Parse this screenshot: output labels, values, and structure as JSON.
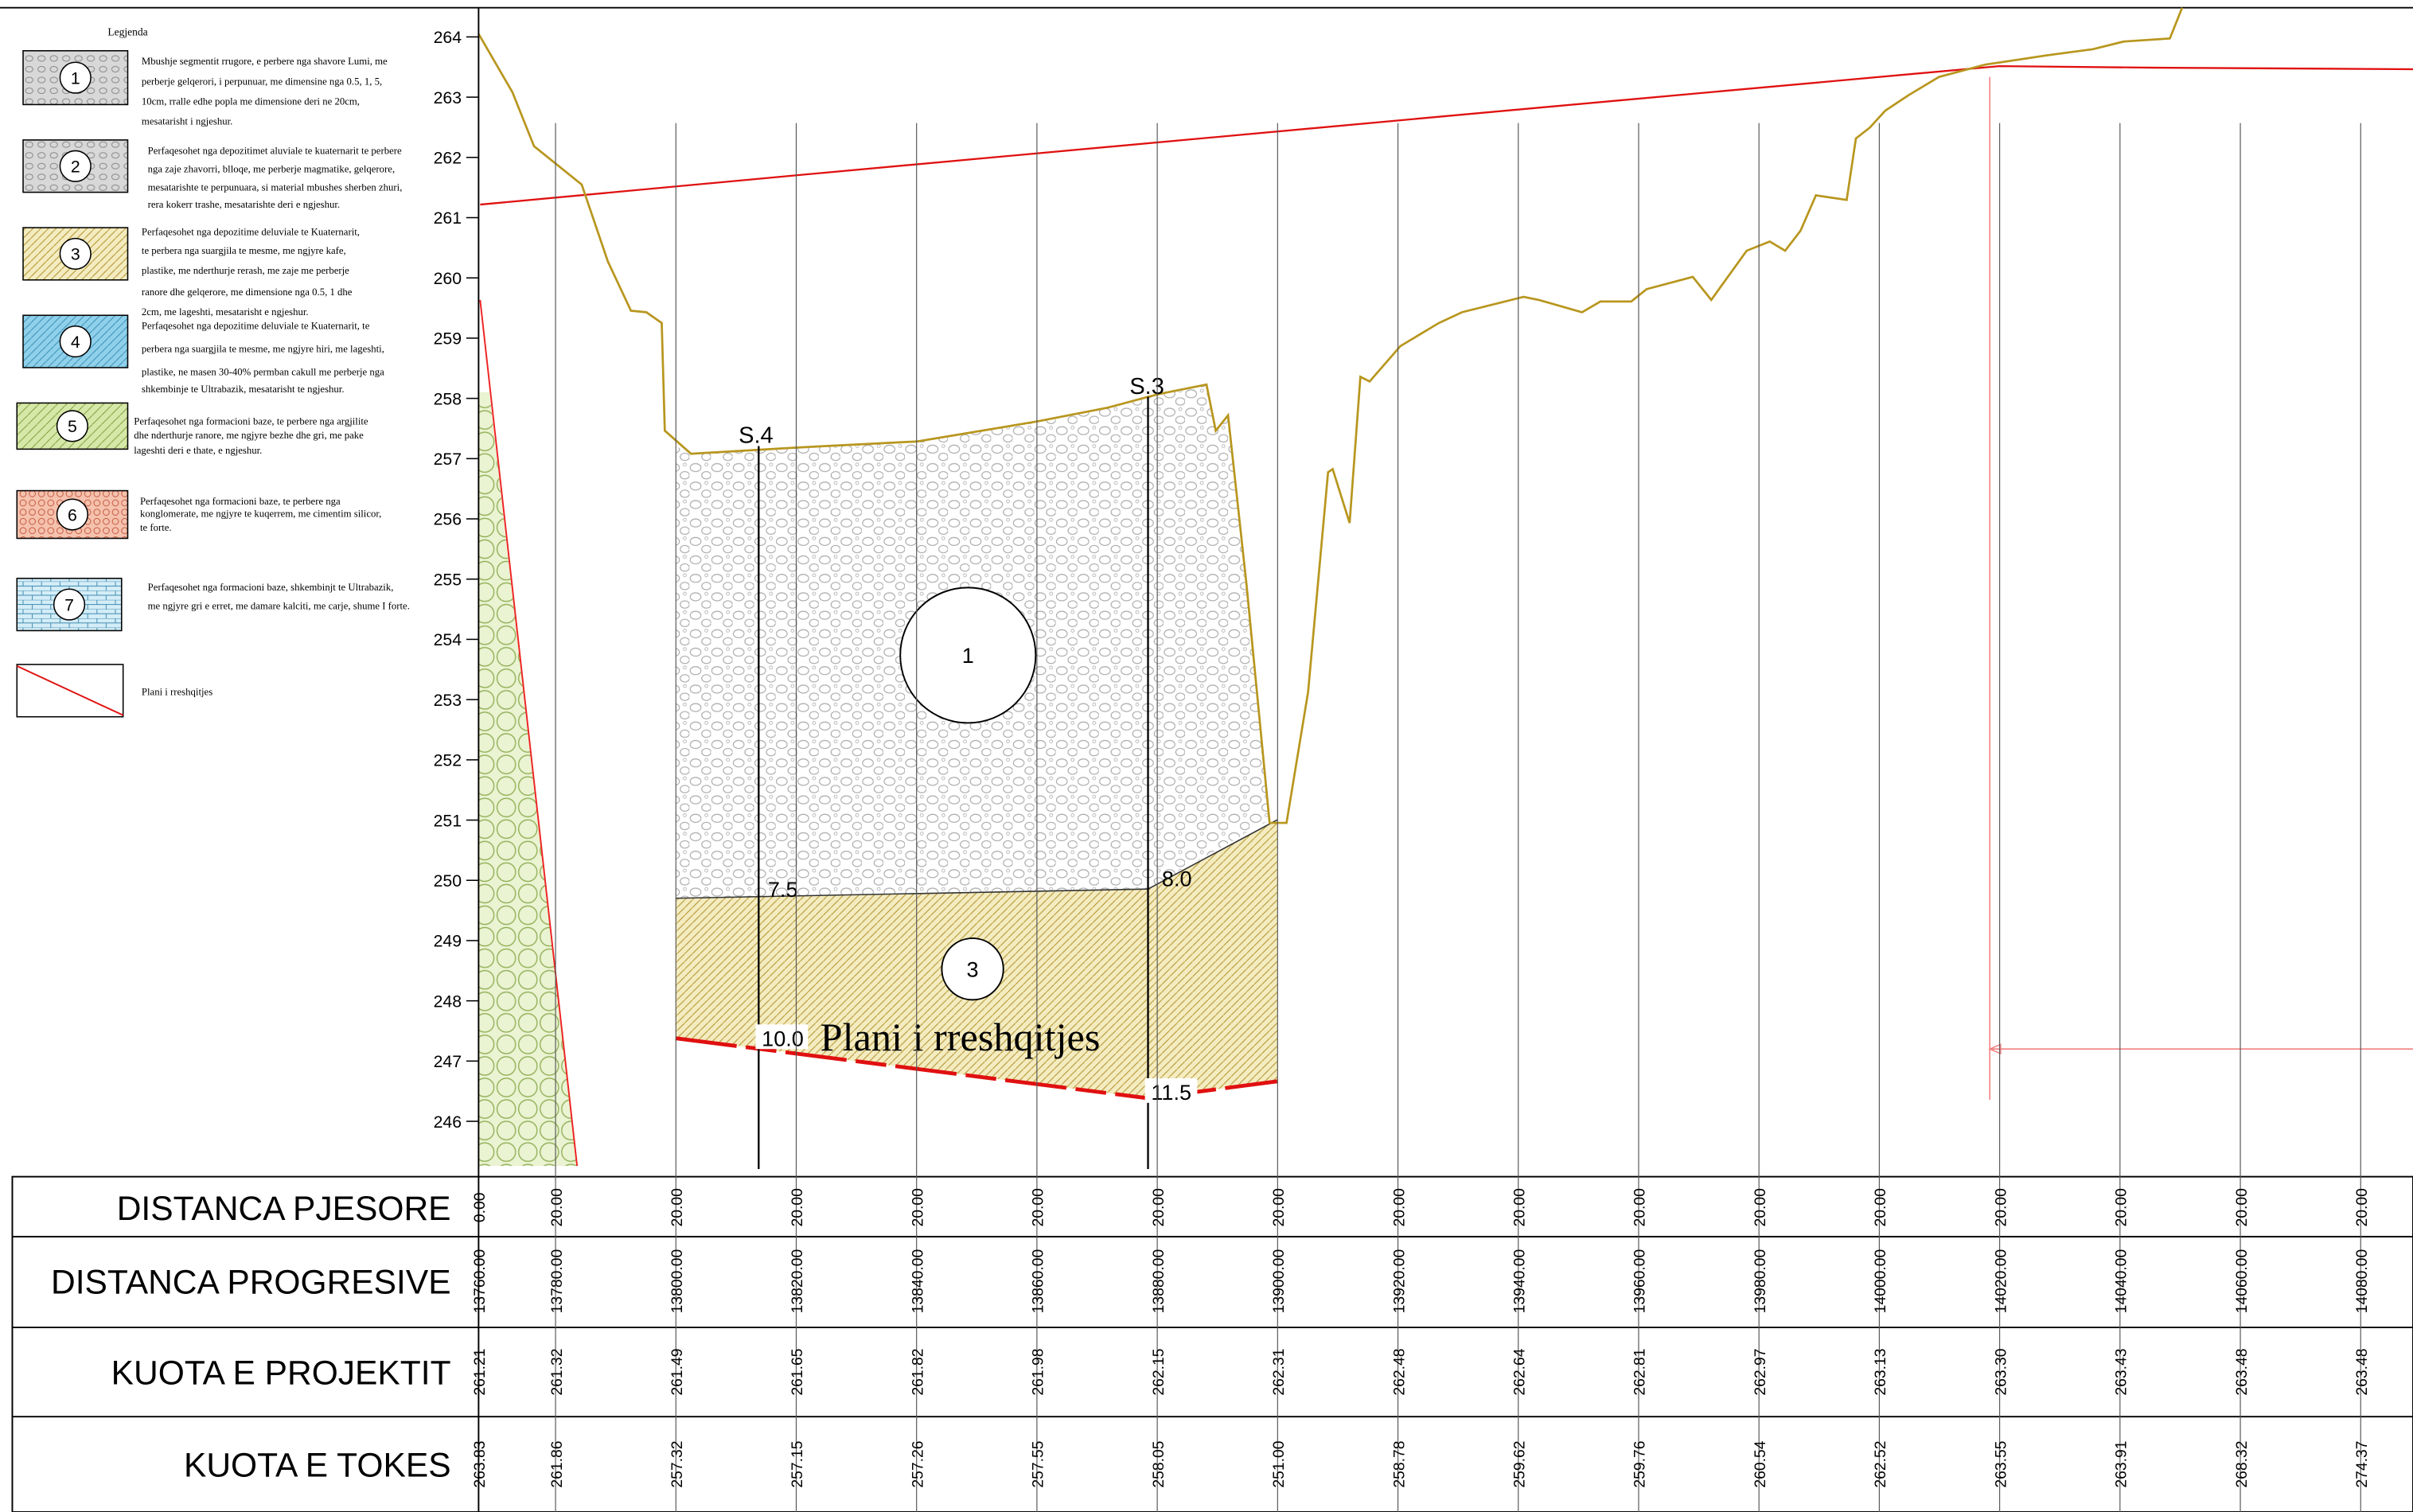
{
  "legend": {
    "title": "Legjenda",
    "items": [
      {
        "number": "1",
        "lines": [
          "Mbushje segmentit rrugore, e perbere nga shavore Lumi, me",
          "perberje gelqerori, i perpunuar, me dimensine nga 0.5, 1, 5,",
          "10cm, rralle edhe popla me dimensione deri ne 20cm,",
          "mesatarisht i ngjeshur."
        ]
      },
      {
        "number": "2",
        "lines": [
          "Perfaqesohet nga depozitimet aluviale te kuaternarit te perbere",
          "nga zaje zhavorri, blloqe, me perberje magmatike, gelqerore,",
          "mesatarishte te perpunuara, si material mbushes sherben zhuri,",
          "rera kokerr trashe, mesatarishte deri e ngjeshur."
        ]
      },
      {
        "number": "3",
        "lines": [
          "Perfaqesohet nga depozitime deluviale te Kuaternarit,",
          "te perbera nga suargjila te mesme, me ngjyre kafe,",
          "plastike, me nderthurje rerash, me zaje me perberje",
          "ranore dhe gelqerore, me dimensione nga 0.5, 1 dhe",
          "2cm, me lageshti, mesatarisht e ngjeshur."
        ]
      },
      {
        "number": "4",
        "lines": [
          "Perfaqesohet nga depozitime deluviale te Kuaternarit,  te",
          "perbera nga suargjila te mesme, me ngjyre hiri, me lageshti,",
          "plastike, ne masen 30-40% permban cakull me perberje nga",
          "shkembinje te Ultrabazik, mesatarisht te ngjeshur."
        ]
      },
      {
        "number": "5",
        "lines": [
          "Perfaqesohet nga formacioni baze, te perbere nga argjilite",
          "dhe nderthurje ranore, me ngjyre bezhe dhe gri, me pake",
          "lageshti deri e thate, e ngjeshur."
        ]
      },
      {
        "number": "6",
        "lines": [
          "Perfaqesohet nga formacioni baze, te perbere nga",
          "konglomerate, me ngjyre te kuqerrem, me cimentim silicor,",
          "te forte."
        ]
      },
      {
        "number": "7",
        "lines": [
          "Perfaqesohet nga formacioni baze, shkembinjt te Ultrabazik,",
          "me ngjyre gri e erret, me damare kalciti, me carje, shume I forte."
        ]
      }
    ],
    "slip": "Plani i rreshqitjes"
  },
  "profile": {
    "yticks": [
      246,
      247,
      248,
      249,
      250,
      251,
      252,
      253,
      254,
      255,
      256,
      257,
      258,
      259,
      260,
      261,
      262,
      263,
      264
    ],
    "boreholes": [
      "S.4",
      "S.3"
    ],
    "depths": [
      "7.5",
      "8.0",
      "10.0",
      "11.5"
    ],
    "layers": [
      "1",
      "3"
    ],
    "slip_label": "Plani i rreshqitjes"
  },
  "table": {
    "headers": [
      "DISTANCA PJESORE",
      "DISTANCA PROGRESIVE",
      "KUOTA E PROJEKTIT",
      "KUOTA E TOKES"
    ],
    "rows": [
      [
        "0.00",
        "20.00",
        "20.00",
        "20.00",
        "20.00",
        "20.00",
        "20.00",
        "20.00",
        "20.00",
        "20.00",
        "20.00",
        "20.00",
        "20.00",
        "20.00",
        "20.00",
        "20.00",
        "20.00"
      ],
      [
        "13760.00",
        "13780.00",
        "13800.00",
        "13820.00",
        "13840.00",
        "13860.00",
        "13880.00",
        "13900.00",
        "13920.00",
        "13940.00",
        "13960.00",
        "13980.00",
        "14000.00",
        "14020.00",
        "14040.00",
        "14060.00",
        "14080.00"
      ],
      [
        "261.21",
        "261.32",
        "261.49",
        "261.65",
        "261.82",
        "261.98",
        "262.15",
        "262.31",
        "262.48",
        "262.64",
        "262.81",
        "262.97",
        "263.13",
        "263.30",
        "263.43",
        "263.48",
        "263.48"
      ],
      [
        "263.83",
        "261.86",
        "257.32",
        "257.15",
        "257.26",
        "257.55",
        "258.05",
        "251.00",
        "258.78",
        "259.62",
        "259.76",
        "260.54",
        "262.52",
        "263.55",
        "263.91",
        "268.32",
        "274.37"
      ]
    ]
  }
}
